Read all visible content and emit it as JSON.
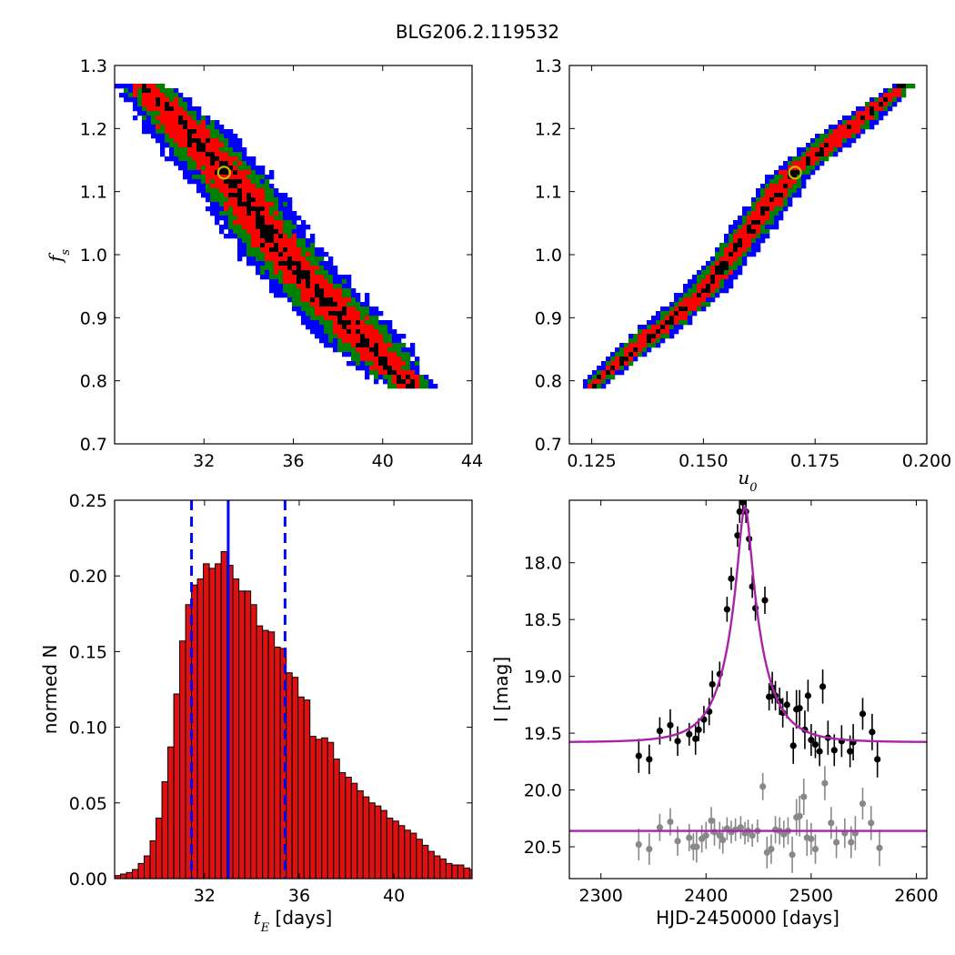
{
  "figure": {
    "title": "BLG206.2.119532"
  },
  "colors": {
    "blue": "#0000ff",
    "green": "#008000",
    "red": "#ff0000",
    "black": "#000000",
    "marker": "#bfbf00",
    "fit": "#aa22aa",
    "grey": "#888888",
    "bar": "#dd1111"
  },
  "chart_data": [
    {
      "type": "heatmap",
      "id": "ts_fs",
      "xlabel": "",
      "ylabel_main": "f",
      "ylabel_sub": "s",
      "xlim": [
        28,
        44
      ],
      "ylim": [
        0.7,
        1.3
      ],
      "xticks": [
        32,
        36,
        40,
        44
      ],
      "yticks": [
        0.7,
        0.8,
        0.9,
        1.0,
        1.1,
        1.2,
        1.3
      ],
      "levels": [
        "blue",
        "green",
        "red",
        "black"
      ],
      "ridge": [
        [
          29.3,
          1.27
        ],
        [
          33.0,
          1.13
        ],
        [
          35.5,
          1.0
        ],
        [
          38.2,
          0.9
        ],
        [
          41.2,
          0.79
        ]
      ],
      "half_widths": [
        1.9,
        1.45,
        0.95,
        0.35
      ],
      "best_fit": {
        "x": 32.9,
        "y": 1.13
      }
    },
    {
      "type": "heatmap",
      "id": "u0_fs",
      "xlabel_main": "u",
      "xlabel_sub": "0",
      "ylabel": "",
      "xlim": [
        0.12,
        0.2
      ],
      "ylim": [
        0.7,
        1.3
      ],
      "xticks": [
        0.125,
        0.15,
        0.175,
        0.2
      ],
      "yticks": [
        0.7,
        0.8,
        0.9,
        1.0,
        1.1,
        1.2,
        1.3
      ],
      "levels": [
        "blue",
        "green",
        "red",
        "black"
      ],
      "ridge": [
        [
          0.1255,
          0.795
        ],
        [
          0.15,
          0.94
        ],
        [
          0.17,
          1.13
        ],
        [
          0.195,
          1.27
        ]
      ],
      "half_widths": [
        0.0048,
        0.0036,
        0.0023,
        0.0008
      ],
      "best_fit": {
        "x": 0.1705,
        "y": 1.13
      }
    },
    {
      "type": "bar",
      "id": "te_hist",
      "xlabel_main": "t",
      "xlabel_sub": "E",
      "xlabel_unit": "[days]",
      "ylabel": "normed N",
      "xlim": [
        28.2,
        43.3
      ],
      "ylim": [
        0,
        0.25
      ],
      "xticks": [
        32,
        36,
        40
      ],
      "yticks": [
        "0.00",
        "0.05",
        "0.10",
        "0.15",
        "0.20",
        "0.25"
      ],
      "bin_start": 28.2,
      "bin_width": 0.25,
      "values": [
        0.002,
        0.003,
        0.004,
        0.006,
        0.01,
        0.015,
        0.025,
        0.04,
        0.064,
        0.087,
        0.122,
        0.157,
        0.181,
        0.194,
        0.198,
        0.208,
        0.205,
        0.208,
        0.216,
        0.207,
        0.198,
        0.19,
        0.19,
        0.181,
        0.167,
        0.164,
        0.163,
        0.153,
        0.152,
        0.136,
        0.133,
        0.12,
        0.118,
        0.094,
        0.092,
        0.093,
        0.09,
        0.079,
        0.07,
        0.067,
        0.063,
        0.058,
        0.054,
        0.05,
        0.048,
        0.045,
        0.04,
        0.038,
        0.035,
        0.032,
        0.03,
        0.026,
        0.022,
        0.018,
        0.015,
        0.013,
        0.01,
        0.009,
        0.009,
        0.007,
        0.006,
        0.006,
        0.004,
        0.004,
        0.003,
        0.003,
        0.003,
        0.002,
        0.002,
        0.002
      ],
      "median": 33.0,
      "lower": 31.45,
      "upper": 35.4
    },
    {
      "type": "scatter",
      "id": "lightcurve",
      "xlabel": "HJD-2450000 [days]",
      "ylabel": "I [mag]",
      "xlim": [
        2270,
        2610
      ],
      "ylim": [
        20.78,
        17.45
      ],
      "xticks": [
        2300,
        2400,
        2500,
        2600
      ],
      "yticks": [
        "18.0",
        "18.5",
        "19.0",
        "19.5",
        "20.0",
        "20.5"
      ],
      "model": {
        "t0": 2437,
        "u0": 0.17,
        "tE": 33.0,
        "base": 19.58,
        "amp_mag": 2.07
      },
      "baseline_fit": 20.36,
      "points": [
        [
          2336,
          19.7,
          0.15
        ],
        [
          2346,
          19.73,
          0.13
        ],
        [
          2356,
          19.48,
          0.12
        ],
        [
          2366,
          19.43,
          0.14
        ],
        [
          2373,
          19.57,
          0.13
        ],
        [
          2384,
          19.51,
          0.1
        ],
        [
          2390,
          19.55,
          0.14
        ],
        [
          2393,
          19.47,
          0.1
        ],
        [
          2398,
          19.38,
          0.12
        ],
        [
          2403,
          19.31,
          0.12
        ],
        [
          2406,
          19.07,
          0.12
        ],
        [
          2413,
          18.98,
          0.11
        ],
        [
          2420,
          18.41,
          0.11
        ],
        [
          2424,
          18.14,
          0.1
        ],
        [
          2430,
          17.76,
          0.1
        ],
        [
          2432,
          17.55,
          0.1
        ],
        [
          2435,
          17.47,
          0.1
        ],
        [
          2438,
          17.55,
          0.1
        ],
        [
          2441,
          17.79,
          0.1
        ],
        [
          2444,
          18.21,
          0.1
        ],
        [
          2447,
          18.4,
          0.11
        ],
        [
          2456,
          18.33,
          0.12
        ],
        [
          2460,
          19.18,
          0.12
        ],
        [
          2463,
          19.1,
          0.14
        ],
        [
          2466,
          19.17,
          0.13
        ],
        [
          2470,
          19.22,
          0.12
        ],
        [
          2473,
          19.32,
          0.13
        ],
        [
          2477,
          19.25,
          0.12
        ],
        [
          2483,
          19.61,
          0.16
        ],
        [
          2486,
          19.29,
          0.17
        ],
        [
          2489,
          19.28,
          0.16
        ],
        [
          2494,
          19.47,
          0.17
        ],
        [
          2497,
          19.17,
          0.14
        ],
        [
          2500,
          19.56,
          0.14
        ],
        [
          2504,
          19.6,
          0.12
        ],
        [
          2508,
          19.66,
          0.13
        ],
        [
          2511,
          19.09,
          0.15
        ],
        [
          2516,
          19.54,
          0.15
        ],
        [
          2522,
          19.65,
          0.14
        ],
        [
          2529,
          19.57,
          0.14
        ],
        [
          2537,
          19.66,
          0.14
        ],
        [
          2540,
          19.58,
          0.16
        ],
        [
          2549,
          19.33,
          0.14
        ],
        [
          2558,
          19.49,
          0.16
        ],
        [
          2563,
          19.73,
          0.16
        ]
      ],
      "baseline_points": [
        [
          2336,
          20.48,
          0.14
        ],
        [
          2346,
          20.52,
          0.14
        ],
        [
          2356,
          20.33,
          0.12
        ],
        [
          2366,
          20.28,
          0.12
        ],
        [
          2373,
          20.45,
          0.13
        ],
        [
          2384,
          20.42,
          0.12
        ],
        [
          2388,
          20.5,
          0.12
        ],
        [
          2391,
          20.5,
          0.14
        ],
        [
          2396,
          20.43,
          0.12
        ],
        [
          2400,
          20.4,
          0.12
        ],
        [
          2405,
          20.27,
          0.12
        ],
        [
          2408,
          20.37,
          0.12
        ],
        [
          2413,
          20.4,
          0.12
        ],
        [
          2416,
          20.44,
          0.12
        ],
        [
          2420,
          20.34,
          0.1
        ],
        [
          2424,
          20.37,
          0.1
        ],
        [
          2428,
          20.35,
          0.1
        ],
        [
          2433,
          20.33,
          0.1
        ],
        [
          2437,
          20.38,
          0.1
        ],
        [
          2440,
          20.36,
          0.1
        ],
        [
          2444,
          20.4,
          0.1
        ],
        [
          2449,
          20.36,
          0.1
        ],
        [
          2454,
          19.97,
          0.12
        ],
        [
          2458,
          20.55,
          0.14
        ],
        [
          2462,
          20.52,
          0.13
        ],
        [
          2466,
          20.35,
          0.12
        ],
        [
          2470,
          20.36,
          0.12
        ],
        [
          2474,
          20.39,
          0.12
        ],
        [
          2478,
          20.36,
          0.12
        ],
        [
          2482,
          20.57,
          0.16
        ],
        [
          2486,
          20.24,
          0.16
        ],
        [
          2489,
          20.23,
          0.18
        ],
        [
          2493,
          20.06,
          0.16
        ],
        [
          2496,
          20.42,
          0.16
        ],
        [
          2500,
          20.43,
          0.14
        ],
        [
          2504,
          20.52,
          0.13
        ],
        [
          2513,
          19.94,
          0.15
        ],
        [
          2519,
          20.29,
          0.14
        ],
        [
          2524,
          20.46,
          0.14
        ],
        [
          2532,
          20.38,
          0.13
        ],
        [
          2538,
          20.46,
          0.14
        ],
        [
          2542,
          20.38,
          0.15
        ],
        [
          2549,
          20.12,
          0.14
        ],
        [
          2557,
          20.29,
          0.15
        ],
        [
          2565,
          20.51,
          0.16
        ]
      ]
    }
  ]
}
